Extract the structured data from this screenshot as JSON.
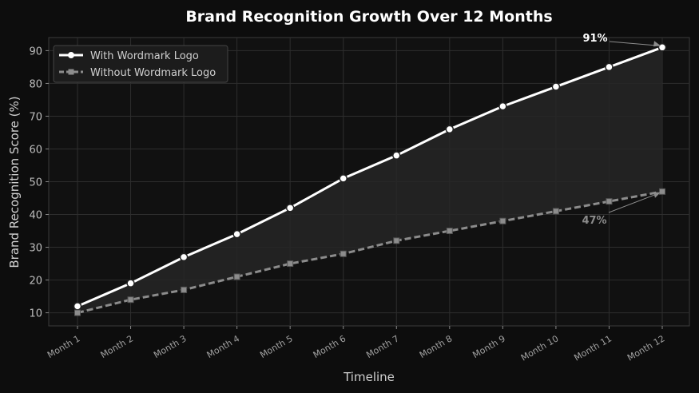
{
  "chart_data": {
    "type": "line",
    "title": "Brand Recognition Growth Over 12 Months",
    "xlabel": "Timeline",
    "ylabel": "Brand Recognition Score (%)",
    "categories": [
      "Month 1",
      "Month 2",
      "Month 3",
      "Month 4",
      "Month 5",
      "Month 6",
      "Month 7",
      "Month 8",
      "Month 9",
      "Month 10",
      "Month 11",
      "Month 12"
    ],
    "ylim": [
      6,
      94
    ],
    "yticks": [
      10,
      20,
      30,
      40,
      50,
      60,
      70,
      80,
      90
    ],
    "grid": true,
    "legend_position": "top-left",
    "series": [
      {
        "name": "With Wordmark Logo",
        "values": [
          12,
          19,
          27,
          34,
          42,
          51,
          58,
          66,
          73,
          79,
          85,
          91
        ],
        "color": "#ffffff",
        "style": "solid",
        "marker": "circle"
      },
      {
        "name": "Without Wordmark Logo",
        "values": [
          10,
          14,
          17,
          21,
          25,
          28,
          32,
          35,
          38,
          41,
          44,
          47
        ],
        "color": "#8c8c8c",
        "style": "dashed",
        "marker": "square"
      }
    ],
    "annotations": [
      {
        "text": "91%",
        "series": 0,
        "index": 11
      },
      {
        "text": "47%",
        "series": 1,
        "index": 11
      }
    ],
    "fill_between": true,
    "colors": {
      "background": "#0d0d0d",
      "plot_background": "#111111",
      "grid": "#2e2e2e",
      "fill": "#262626",
      "text": "#d0d0d0",
      "title": "#ffffff"
    }
  }
}
